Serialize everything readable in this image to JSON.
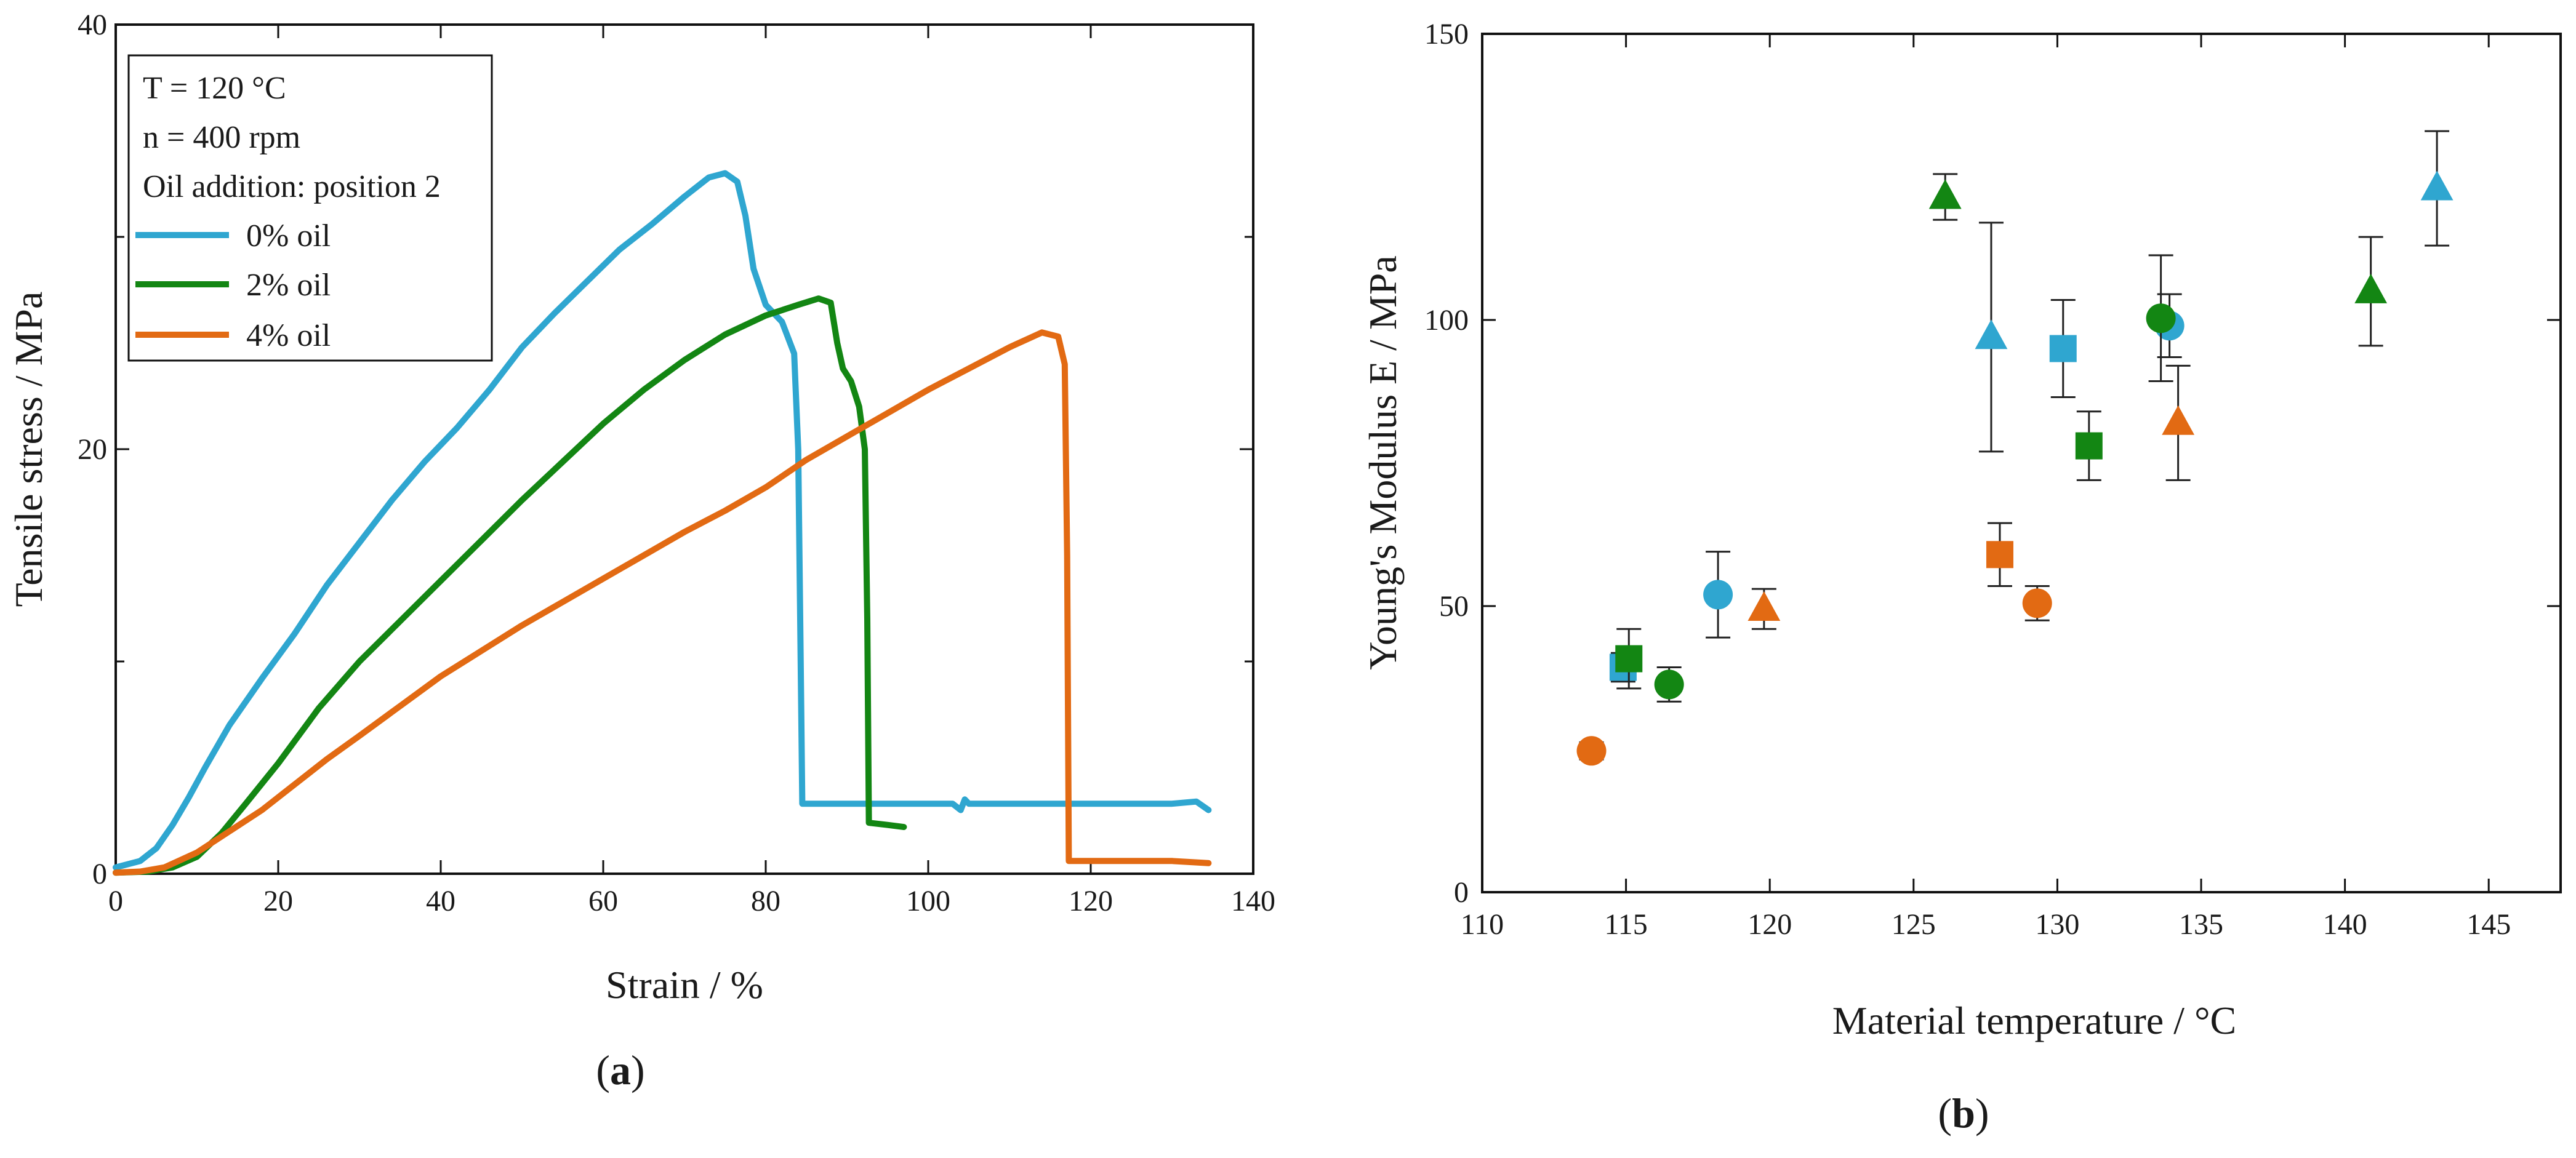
{
  "chart_data": [
    {
      "type": "line",
      "panel_label": "a",
      "xlabel": "Strain  / %",
      "ylabel": "Tensile stress / MPa",
      "xlim": [
        0,
        140
      ],
      "ylim": [
        0,
        40
      ],
      "xticks": [
        0,
        20,
        40,
        60,
        80,
        100,
        120,
        140
      ],
      "yticks": [
        0,
        20,
        40
      ],
      "yminor": [
        10,
        30
      ],
      "legend": {
        "location": "top-left",
        "header": [
          "T = 120 °C",
          "n = 400 rpm",
          "Oil addition: position 2"
        ]
      },
      "series": [
        {
          "name": "0% oil",
          "color": "#2fa6d0",
          "points": [
            [
              0,
              0.3
            ],
            [
              3,
              0.6
            ],
            [
              5,
              1.2
            ],
            [
              7,
              2.3
            ],
            [
              9,
              3.6
            ],
            [
              11,
              5.0
            ],
            [
              14,
              7.0
            ],
            [
              18,
              9.2
            ],
            [
              22,
              11.3
            ],
            [
              26,
              13.6
            ],
            [
              30,
              15.6
            ],
            [
              34,
              17.6
            ],
            [
              38,
              19.4
            ],
            [
              42,
              21.0
            ],
            [
              46,
              22.8
            ],
            [
              50,
              24.8
            ],
            [
              54,
              26.4
            ],
            [
              58,
              27.9
            ],
            [
              62,
              29.4
            ],
            [
              66,
              30.6
            ],
            [
              70,
              31.9
            ],
            [
              73,
              32.8
            ],
            [
              75,
              33.0
            ],
            [
              76.5,
              32.6
            ],
            [
              77.5,
              31.0
            ],
            [
              78.5,
              28.5
            ],
            [
              80,
              26.8
            ],
            [
              82,
              26.0
            ],
            [
              83.5,
              24.5
            ],
            [
              84,
              20
            ],
            [
              84.3,
              10
            ],
            [
              84.5,
              3.3
            ],
            [
              90,
              3.3
            ],
            [
              95,
              3.3
            ],
            [
              100,
              3.3
            ],
            [
              103,
              3.3
            ],
            [
              104,
              3.0
            ],
            [
              104.5,
              3.5
            ],
            [
              105,
              3.3
            ],
            [
              110,
              3.3
            ],
            [
              115,
              3.3
            ],
            [
              120,
              3.3
            ],
            [
              125,
              3.3
            ],
            [
              130,
              3.3
            ],
            [
              133,
              3.4
            ],
            [
              134.5,
              3.0
            ]
          ]
        },
        {
          "name": "2% oil",
          "color": "#138613",
          "points": [
            [
              0,
              0.05
            ],
            [
              4,
              0.1
            ],
            [
              7,
              0.3
            ],
            [
              10,
              0.8
            ],
            [
              13,
              1.9
            ],
            [
              16,
              3.3
            ],
            [
              20,
              5.2
            ],
            [
              25,
              7.8
            ],
            [
              30,
              10.0
            ],
            [
              35,
              11.9
            ],
            [
              40,
              13.8
            ],
            [
              45,
              15.7
            ],
            [
              50,
              17.6
            ],
            [
              55,
              19.4
            ],
            [
              60,
              21.2
            ],
            [
              65,
              22.8
            ],
            [
              70,
              24.2
            ],
            [
              75,
              25.4
            ],
            [
              80,
              26.3
            ],
            [
              84,
              26.8
            ],
            [
              86.5,
              27.1
            ],
            [
              88,
              26.9
            ],
            [
              88.8,
              25.0
            ],
            [
              89.5,
              23.8
            ],
            [
              90.5,
              23.2
            ],
            [
              91.5,
              22.0
            ],
            [
              92.2,
              20.0
            ],
            [
              92.5,
              12.0
            ],
            [
              92.7,
              2.4
            ],
            [
              95,
              2.3
            ],
            [
              97,
              2.2
            ]
          ]
        },
        {
          "name": "4% oil",
          "color": "#e26a13",
          "points": [
            [
              0,
              0.05
            ],
            [
              3,
              0.1
            ],
            [
              6,
              0.3
            ],
            [
              10,
              1.0
            ],
            [
              14,
              2.0
            ],
            [
              18,
              3.0
            ],
            [
              22,
              4.2
            ],
            [
              26,
              5.4
            ],
            [
              30,
              6.5
            ],
            [
              35,
              7.9
            ],
            [
              40,
              9.3
            ],
            [
              45,
              10.5
            ],
            [
              50,
              11.7
            ],
            [
              55,
              12.8
            ],
            [
              60,
              13.9
            ],
            [
              65,
              15.0
            ],
            [
              70,
              16.1
            ],
            [
              75,
              17.1
            ],
            [
              80,
              18.2
            ],
            [
              85,
              19.5
            ],
            [
              90,
              20.6
            ],
            [
              95,
              21.7
            ],
            [
              100,
              22.8
            ],
            [
              105,
              23.8
            ],
            [
              110,
              24.8
            ],
            [
              114,
              25.5
            ],
            [
              116,
              25.3
            ],
            [
              116.8,
              24.0
            ],
            [
              117.1,
              15.0
            ],
            [
              117.3,
              0.6
            ],
            [
              120,
              0.6
            ],
            [
              125,
              0.6
            ],
            [
              130,
              0.6
            ],
            [
              134.5,
              0.5
            ]
          ]
        }
      ]
    },
    {
      "type": "scatter",
      "panel_label": "b",
      "xlabel": "Material temperature / °C",
      "ylabel": "Young's Modulus E / MPa",
      "xlim": [
        110,
        147.5
      ],
      "ylim": [
        0,
        150
      ],
      "xticks": [
        110,
        115,
        120,
        125,
        130,
        135,
        140,
        145
      ],
      "yticks": [
        0,
        50,
        100,
        150
      ],
      "series": [
        {
          "name": "0% oil",
          "color": "#2fa6d0",
          "points": [
            {
              "x": 114.9,
              "y": 39.3,
              "err": 2.5,
              "marker": "square"
            },
            {
              "x": 130.2,
              "y": 95.0,
              "err": 8.5,
              "marker": "square"
            },
            {
              "x": 118.2,
              "y": 52.0,
              "err": 7.5,
              "marker": "circle"
            },
            {
              "x": 133.9,
              "y": 99.0,
              "err": 5.5,
              "marker": "circle"
            },
            {
              "x": 127.7,
              "y": 97.0,
              "err": 20.0,
              "marker": "triangle"
            },
            {
              "x": 143.2,
              "y": 123.0,
              "err": 10.0,
              "marker": "triangle"
            }
          ]
        },
        {
          "name": "2% oil",
          "color": "#138613",
          "points": [
            {
              "x": 115.1,
              "y": 40.8,
              "err": 5.2,
              "marker": "square"
            },
            {
              "x": 131.1,
              "y": 78.0,
              "err": 6.0,
              "marker": "square"
            },
            {
              "x": 116.5,
              "y": 36.3,
              "err": 3.0,
              "marker": "circle"
            },
            {
              "x": 133.6,
              "y": 100.3,
              "err": 11.0,
              "marker": "circle"
            },
            {
              "x": 126.1,
              "y": 121.5,
              "err": 4.0,
              "marker": "triangle"
            },
            {
              "x": 140.9,
              "y": 105.0,
              "err": 9.5,
              "marker": "triangle"
            }
          ]
        },
        {
          "name": "4% oil",
          "color": "#e26a13",
          "points": [
            {
              "x": 113.8,
              "y": 24.7,
              "err": 1.5,
              "marker": "circle"
            },
            {
              "x": 128.0,
              "y": 59.0,
              "err": 5.5,
              "marker": "square"
            },
            {
              "x": 129.3,
              "y": 50.5,
              "err": 3.0,
              "marker": "circle"
            },
            {
              "x": 119.8,
              "y": 49.5,
              "err": 3.5,
              "marker": "triangle"
            },
            {
              "x": 134.2,
              "y": 82.0,
              "err": 10.0,
              "marker": "triangle"
            }
          ]
        }
      ]
    }
  ]
}
